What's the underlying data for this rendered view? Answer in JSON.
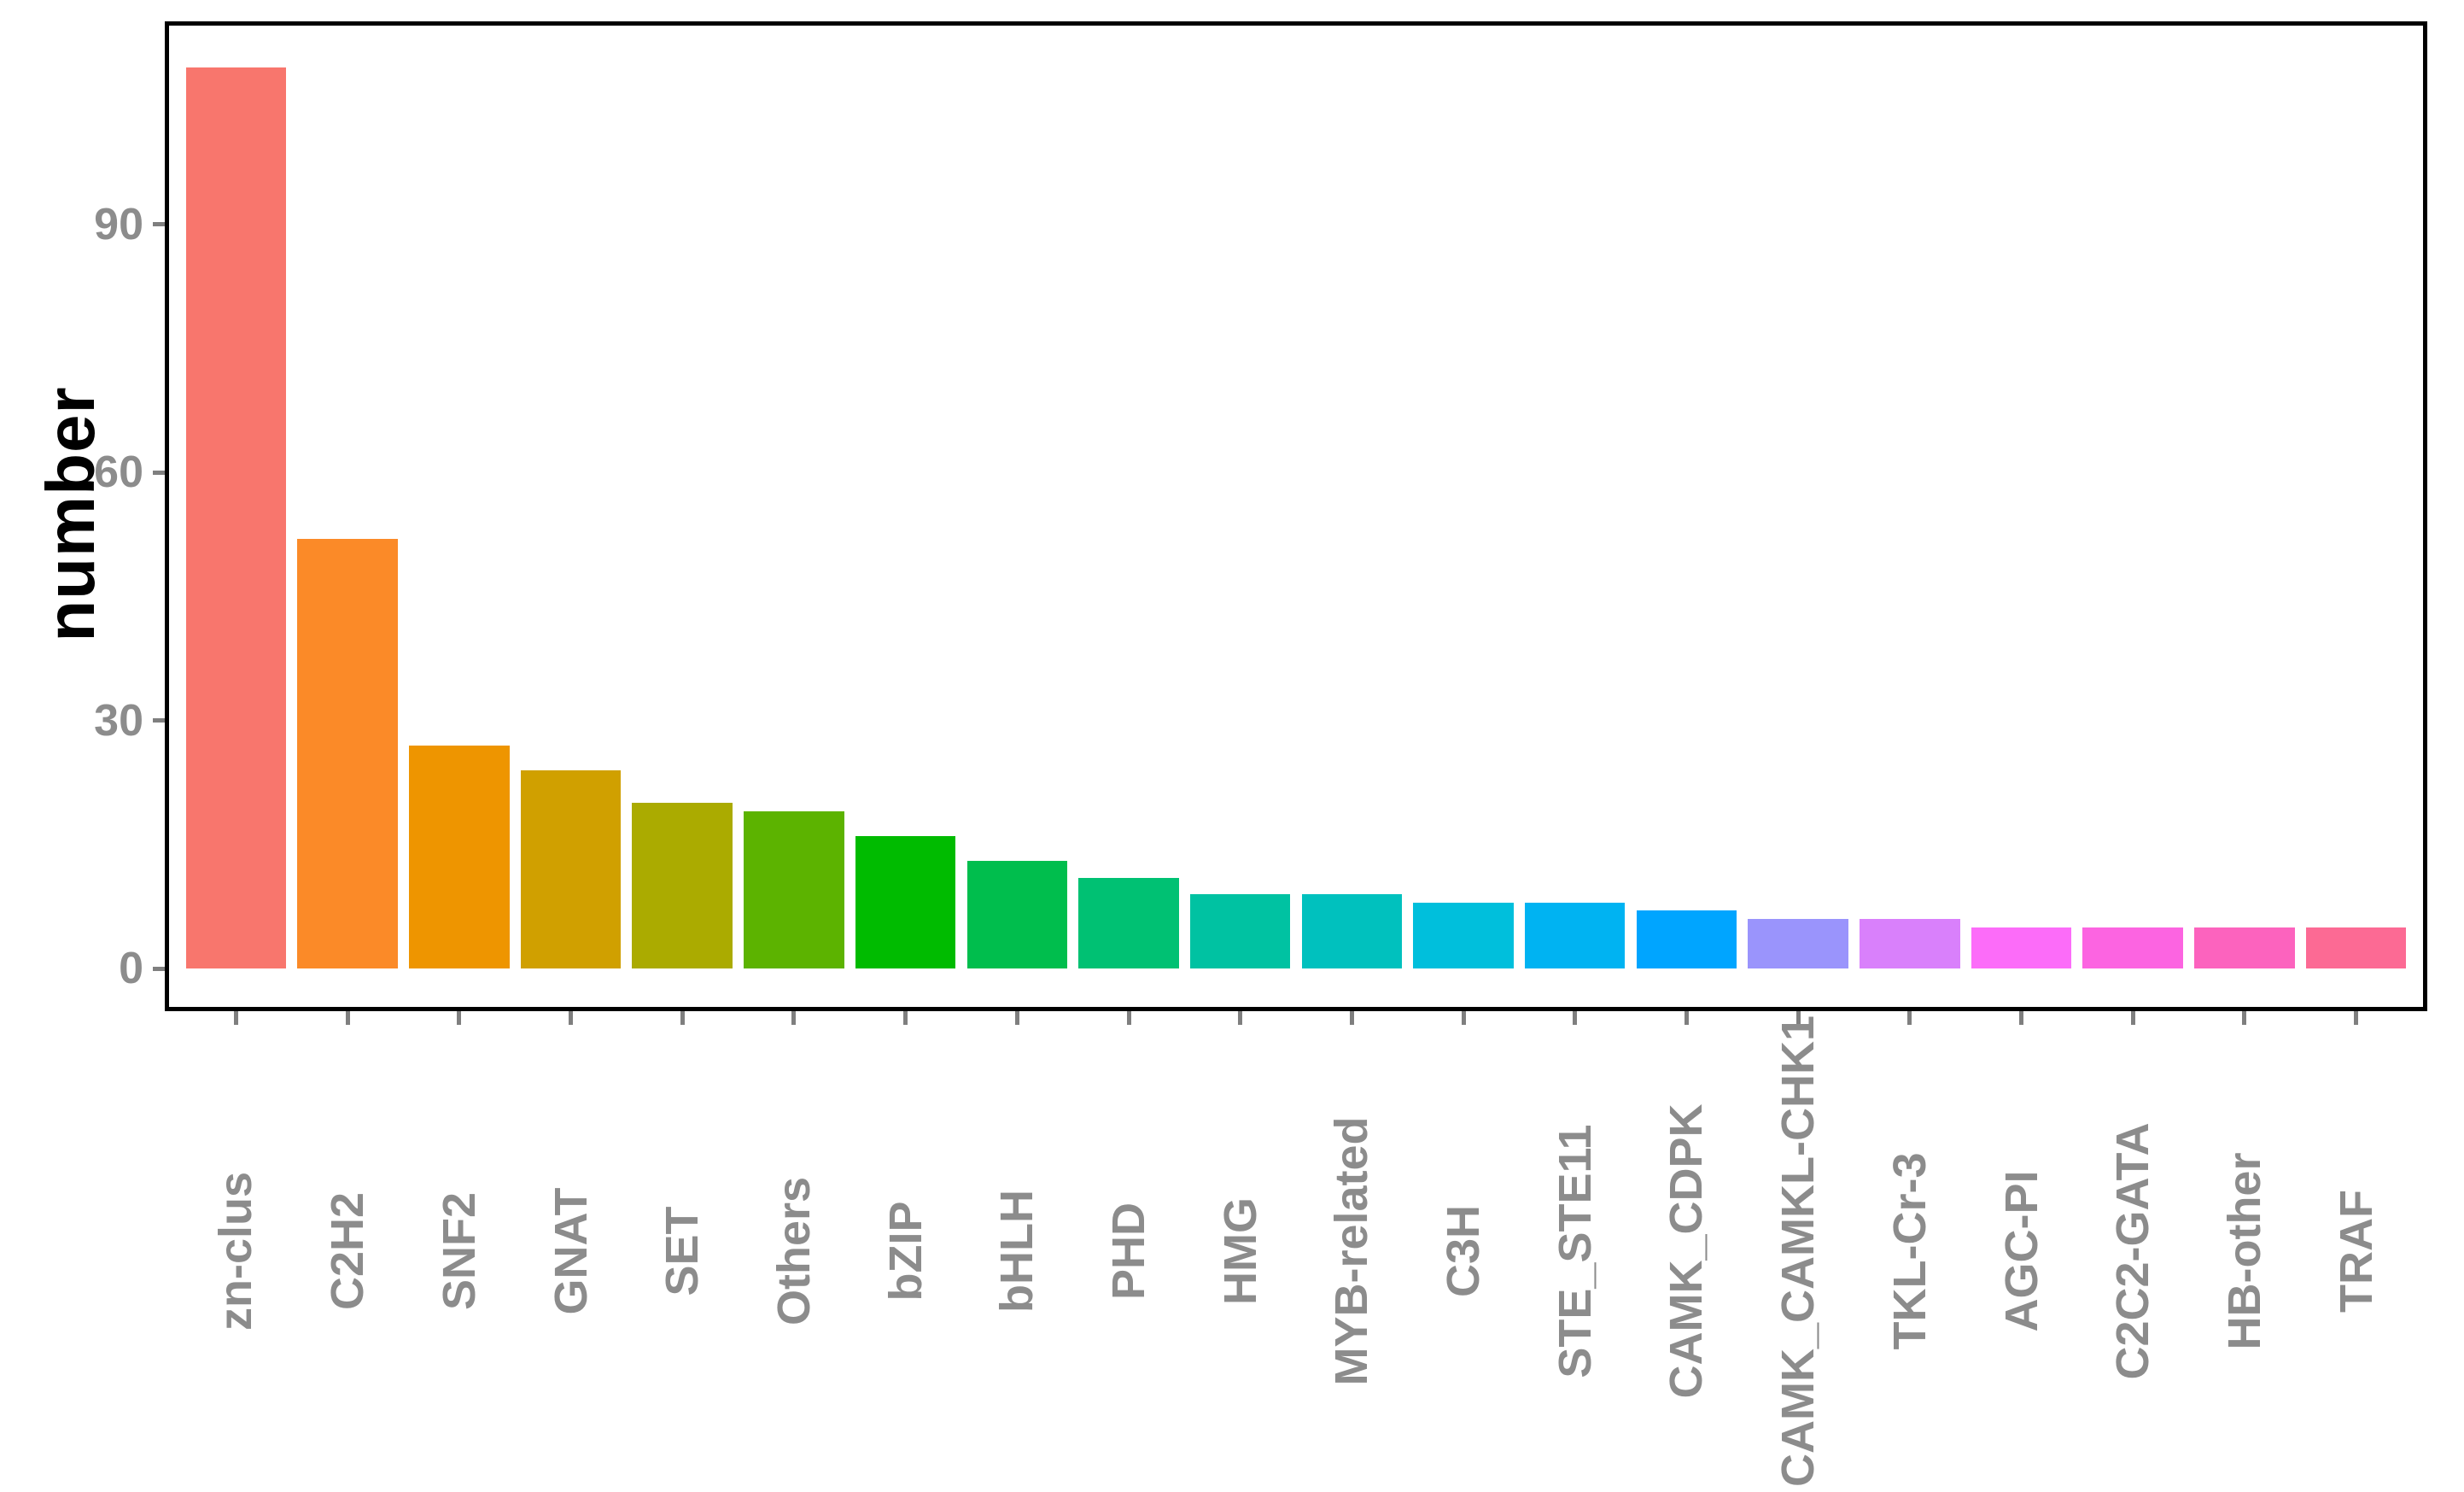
{
  "chart_data": {
    "type": "bar",
    "title": "",
    "xlabel": "",
    "ylabel": "number",
    "categories": [
      "zn-clus",
      "C2H2",
      "SNF2",
      "GNAT",
      "SET",
      "Others",
      "bZIP",
      "bHLH",
      "PHD",
      "HMG",
      "MYB-related",
      "C3H",
      "STE_STE11",
      "CAMK_CDPK",
      "CAMK_CAMKL-CHK1",
      "TKL-Cr-3",
      "AGC-PI",
      "C2C2-GATA",
      "HB-other",
      "TRAF"
    ],
    "values": [
      109,
      52,
      27,
      24,
      20,
      19,
      16,
      13,
      11,
      9,
      9,
      8,
      8,
      7,
      6,
      6,
      5,
      5,
      5,
      5
    ],
    "bar_colors": [
      "#F8766D",
      "#FB8A28",
      "#EE9500",
      "#D0A000",
      "#ABAB00",
      "#5CB300",
      "#00BB00",
      "#00BE4D",
      "#00C173",
      "#00C2A2",
      "#00C1BE",
      "#00BFDC",
      "#00B3F2",
      "#00A5FF",
      "#9A94FC",
      "#D980FB",
      "#FC6CF9",
      "#FC64E1",
      "#FC63BE",
      "#FC6A94"
    ],
    "yticks": [
      0,
      30,
      60,
      90
    ],
    "ylim": [
      -5.5,
      115.5
    ],
    "grid": false,
    "legend": "none",
    "bar_width_fraction": 0.9
  },
  "style": {
    "background": "#FFFFFF",
    "frame_color": "#000000",
    "axis_text_color": "#8C8C8C",
    "tick_color": "#7F7F7F",
    "axis_title_color": "#000000"
  }
}
